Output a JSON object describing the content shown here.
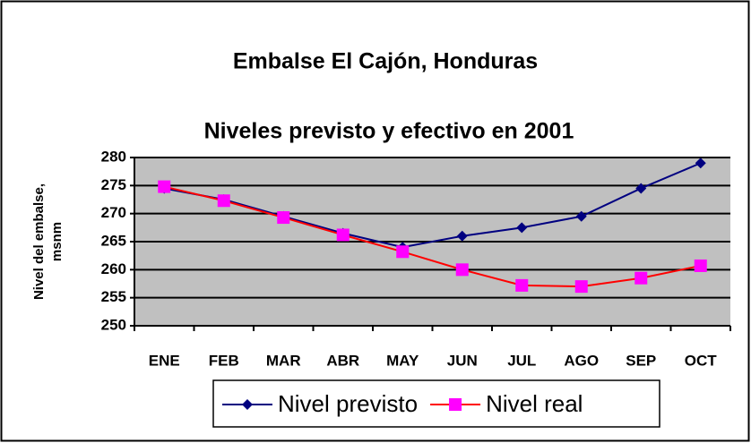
{
  "chart_data": {
    "type": "line",
    "title": "Embalse El Cajón, Honduras",
    "subtitle": "Niveles previsto y efectivo en 2001",
    "y_label_lines": [
      "Nivel del embalse,",
      "msnm"
    ],
    "categories": [
      "ENE",
      "FEB",
      "MAR",
      "ABR",
      "MAY",
      "JUN",
      "JUL",
      "AGO",
      "SEP",
      "OCT"
    ],
    "series": [
      {
        "name": "Nivel previsto",
        "color": "#000080",
        "marker": "diamond",
        "marker_color": "#000080",
        "values": [
          274.5,
          272.5,
          269.5,
          266.5,
          264,
          266,
          267.5,
          269.5,
          274.5,
          279
        ]
      },
      {
        "name": "Nivel real",
        "color": "#ff0000",
        "marker": "square",
        "marker_color": "#ff00ff",
        "values": [
          274.8,
          272.3,
          269.3,
          266.2,
          263.2,
          260,
          257.2,
          257,
          258.5,
          260.7
        ]
      }
    ],
    "ylim": [
      250,
      280
    ],
    "yticks": [
      250,
      255,
      260,
      265,
      270,
      275,
      280
    ],
    "grid": true,
    "plot_background": "#c0c0c0",
    "legend": "bottom"
  }
}
